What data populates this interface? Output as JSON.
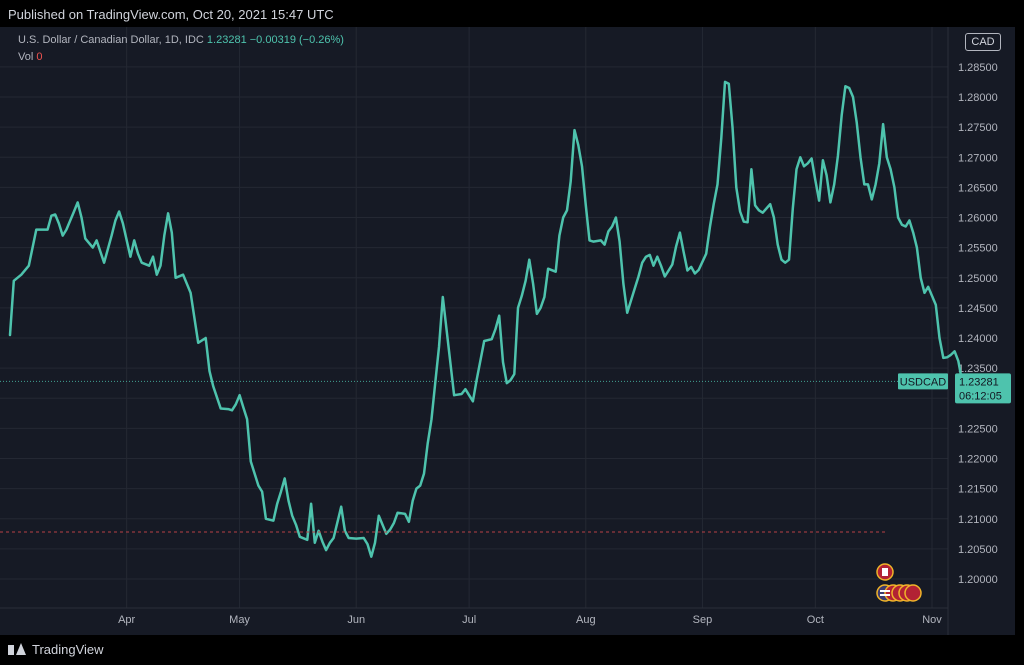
{
  "header": {
    "published": "Published on TradingView.com, Oct 20, 2021 15:47 UTC"
  },
  "legend": {
    "symbol": "U.S. Dollar / Canadian Dollar, 1D, IDC",
    "last": "1.23281",
    "change": "−0.00319 (−0.26%)",
    "vol_label": "Vol",
    "vol_value": "0"
  },
  "currency_badge": "CAD",
  "price_label": {
    "symbol": "USDCAD",
    "price": "1.23281",
    "countdown": "06:12:05"
  },
  "footer": {
    "brand": "TradingView"
  },
  "colors": {
    "line": "#4ec3ad",
    "background": "#161a25",
    "grid": "#242833",
    "axis_text": "#b2b5be",
    "red_line": "#b54045"
  },
  "chart_data": {
    "type": "line",
    "title": "U.S. Dollar / Canadian Dollar, 1D, IDC",
    "xlabel": "",
    "ylabel": "",
    "ylim": [
      1.195,
      1.2925
    ],
    "y_ticks": [
      1.2,
      1.205,
      1.21,
      1.215,
      1.22,
      1.225,
      1.23,
      1.235,
      1.24,
      1.245,
      1.25,
      1.255,
      1.26,
      1.265,
      1.27,
      1.275,
      1.28,
      1.285
    ],
    "y_tick_labels": [
      "1.20000",
      "1.20500",
      "1.21000",
      "1.21500",
      "1.22000",
      "1.22500",
      "1.23000",
      "1.23500",
      "1.24000",
      "1.24500",
      "1.25000",
      "1.25500",
      "1.26000",
      "1.26500",
      "1.27000",
      "1.27500",
      "1.28000",
      "1.28500"
    ],
    "x_tick_labels": [
      "Apr",
      "May",
      "Jun",
      "Jul",
      "Aug",
      "Sep",
      "Oct",
      "Nov"
    ],
    "x_tick_days": [
      31,
      61,
      92,
      122,
      153,
      184,
      214,
      245
    ],
    "x_range_days": [
      0,
      257
    ],
    "grid": true,
    "reference_line_value": 1.2078,
    "last_value": 1.23281,
    "series": [
      {
        "values_by_day": [
          [
            0,
            1.2405
          ],
          [
            1,
            1.2495
          ],
          [
            3,
            1.2505
          ],
          [
            5,
            1.252
          ],
          [
            7,
            1.258
          ],
          [
            8,
            1.258
          ],
          [
            10,
            1.258
          ],
          [
            11,
            1.2603
          ],
          [
            12,
            1.2605
          ],
          [
            13,
            1.259
          ],
          [
            14,
            1.257
          ],
          [
            15,
            1.258
          ],
          [
            17,
            1.261
          ],
          [
            18,
            1.2625
          ],
          [
            19,
            1.26
          ],
          [
            20,
            1.2565
          ],
          [
            22,
            1.255
          ],
          [
            23,
            1.2562
          ],
          [
            25,
            1.2525
          ],
          [
            27,
            1.257
          ],
          [
            28,
            1.2595
          ],
          [
            29,
            1.261
          ],
          [
            30,
            1.259
          ],
          [
            32,
            1.2535
          ],
          [
            33,
            1.2562
          ],
          [
            34,
            1.254
          ],
          [
            35,
            1.2525
          ],
          [
            37,
            1.252
          ],
          [
            38,
            1.2535
          ],
          [
            39,
            1.2505
          ],
          [
            40,
            1.252
          ],
          [
            41,
            1.257
          ],
          [
            42,
            1.2607
          ],
          [
            43,
            1.2575
          ],
          [
            44,
            1.25
          ],
          [
            46,
            1.2505
          ],
          [
            48,
            1.2475
          ],
          [
            50,
            1.2392
          ],
          [
            52,
            1.24
          ],
          [
            53,
            1.2345
          ],
          [
            54,
            1.232
          ],
          [
            56,
            1.2283
          ],
          [
            58,
            1.2282
          ],
          [
            59,
            1.228
          ],
          [
            60,
            1.229
          ],
          [
            61,
            1.2305
          ],
          [
            62,
            1.2285
          ],
          [
            63,
            1.2265
          ],
          [
            64,
            1.2195
          ],
          [
            66,
            1.2155
          ],
          [
            67,
            1.2145
          ],
          [
            68,
            1.21
          ],
          [
            70,
            1.2097
          ],
          [
            71,
            1.2125
          ],
          [
            72,
            1.2145
          ],
          [
            73,
            1.2167
          ],
          [
            74,
            1.213
          ],
          [
            75,
            1.2105
          ],
          [
            76,
            1.209
          ],
          [
            77,
            1.207
          ],
          [
            79,
            1.2065
          ],
          [
            80,
            1.2125
          ],
          [
            81,
            1.206
          ],
          [
            82,
            1.208
          ],
          [
            83,
            1.2062
          ],
          [
            84,
            1.2048
          ],
          [
            85,
            1.206
          ],
          [
            86,
            1.2068
          ],
          [
            88,
            1.212
          ],
          [
            89,
            1.208
          ],
          [
            90,
            1.2068
          ],
          [
            92,
            1.2067
          ],
          [
            94,
            1.2068
          ],
          [
            95,
            1.2058
          ],
          [
            96,
            1.2037
          ],
          [
            97,
            1.206
          ],
          [
            98,
            1.2105
          ],
          [
            100,
            1.2075
          ],
          [
            101,
            1.2082
          ],
          [
            102,
            1.2093
          ],
          [
            103,
            1.211
          ],
          [
            105,
            1.2108
          ],
          [
            106,
            1.2095
          ],
          [
            107,
            1.213
          ],
          [
            108,
            1.215
          ],
          [
            109,
            1.2155
          ],
          [
            110,
            1.2175
          ],
          [
            111,
            1.2225
          ],
          [
            112,
            1.2265
          ],
          [
            113,
            1.2325
          ],
          [
            114,
            1.2385
          ],
          [
            115,
            1.2468
          ],
          [
            117,
            1.236
          ],
          [
            118,
            1.2305
          ],
          [
            120,
            1.2307
          ],
          [
            121,
            1.2315
          ],
          [
            123,
            1.2295
          ],
          [
            124,
            1.233
          ],
          [
            126,
            1.2395
          ],
          [
            128,
            1.2398
          ],
          [
            129,
            1.2415
          ],
          [
            130,
            1.2437
          ],
          [
            131,
            1.236
          ],
          [
            132,
            1.2325
          ],
          [
            133,
            1.233
          ],
          [
            134,
            1.234
          ],
          [
            135,
            1.245
          ],
          [
            136,
            1.247
          ],
          [
            137,
            1.2495
          ],
          [
            138,
            1.253
          ],
          [
            139,
            1.249
          ],
          [
            140,
            1.244
          ],
          [
            141,
            1.245
          ],
          [
            142,
            1.2468
          ],
          [
            143,
            1.2515
          ],
          [
            145,
            1.251
          ],
          [
            146,
            1.257
          ],
          [
            147,
            1.26
          ],
          [
            148,
            1.2612
          ],
          [
            149,
            1.266
          ],
          [
            150,
            1.2745
          ],
          [
            151,
            1.272
          ],
          [
            152,
            1.2685
          ],
          [
            153,
            1.262
          ],
          [
            154,
            1.2562
          ],
          [
            155,
            1.256
          ],
          [
            157,
            1.2562
          ],
          [
            158,
            1.2555
          ],
          [
            159,
            1.2577
          ],
          [
            160,
            1.2585
          ],
          [
            161,
            1.26
          ],
          [
            162,
            1.256
          ],
          [
            163,
            1.249
          ],
          [
            164,
            1.2442
          ],
          [
            166,
            1.2482
          ],
          [
            167,
            1.2502
          ],
          [
            168,
            1.2525
          ],
          [
            169,
            1.2535
          ],
          [
            170,
            1.2538
          ],
          [
            171,
            1.252
          ],
          [
            172,
            1.2535
          ],
          [
            173,
            1.252
          ],
          [
            174,
            1.2502
          ],
          [
            175,
            1.2512
          ],
          [
            176,
            1.2522
          ],
          [
            177,
            1.2552
          ],
          [
            178,
            1.2575
          ],
          [
            179,
            1.2543
          ],
          [
            180,
            1.2512
          ],
          [
            181,
            1.2518
          ],
          [
            182,
            1.2507
          ],
          [
            183,
            1.2513
          ],
          [
            185,
            1.254
          ],
          [
            186,
            1.2585
          ],
          [
            187,
            1.2622
          ],
          [
            188,
            1.2655
          ],
          [
            189,
            1.2732
          ],
          [
            190,
            1.2825
          ],
          [
            191,
            1.2822
          ],
          [
            192,
            1.275
          ],
          [
            193,
            1.265
          ],
          [
            194,
            1.261
          ],
          [
            195,
            1.2593
          ],
          [
            196,
            1.2592
          ],
          [
            197,
            1.268
          ],
          [
            198,
            1.262
          ],
          [
            199,
            1.2612
          ],
          [
            200,
            1.2608
          ],
          [
            201,
            1.2615
          ],
          [
            202,
            1.2622
          ],
          [
            203,
            1.26
          ],
          [
            204,
            1.2555
          ],
          [
            205,
            1.253
          ],
          [
            206,
            1.2525
          ],
          [
            207,
            1.253
          ],
          [
            208,
            1.2615
          ],
          [
            209,
            1.268
          ],
          [
            210,
            1.27
          ],
          [
            211,
            1.2685
          ],
          [
            212,
            1.269
          ],
          [
            213,
            1.2698
          ],
          [
            214,
            1.2662
          ],
          [
            215,
            1.2628
          ],
          [
            216,
            1.2695
          ],
          [
            217,
            1.267
          ],
          [
            218,
            1.2625
          ],
          [
            219,
            1.2655
          ],
          [
            220,
            1.2702
          ],
          [
            221,
            1.277
          ],
          [
            222,
            1.2818
          ],
          [
            223,
            1.2815
          ],
          [
            224,
            1.28
          ],
          [
            225,
            1.2758
          ],
          [
            226,
            1.27
          ],
          [
            227,
            1.2655
          ],
          [
            228,
            1.2655
          ],
          [
            229,
            1.263
          ],
          [
            230,
            1.2655
          ],
          [
            231,
            1.269
          ],
          [
            232,
            1.2755
          ],
          [
            233,
            1.27
          ],
          [
            234,
            1.268
          ],
          [
            235,
            1.265
          ],
          [
            236,
            1.26
          ],
          [
            237,
            1.2588
          ],
          [
            238,
            1.2585
          ],
          [
            239,
            1.2595
          ],
          [
            240,
            1.2575
          ],
          [
            241,
            1.255
          ],
          [
            242,
            1.25
          ],
          [
            243,
            1.2475
          ],
          [
            244,
            1.2485
          ],
          [
            245,
            1.247
          ],
          [
            246,
            1.2455
          ],
          [
            247,
            1.24
          ],
          [
            248,
            1.2367
          ],
          [
            249,
            1.2368
          ],
          [
            250,
            1.2372
          ],
          [
            251,
            1.2378
          ],
          [
            252,
            1.2362
          ],
          [
            253,
            1.2328
          ]
        ]
      }
    ]
  }
}
